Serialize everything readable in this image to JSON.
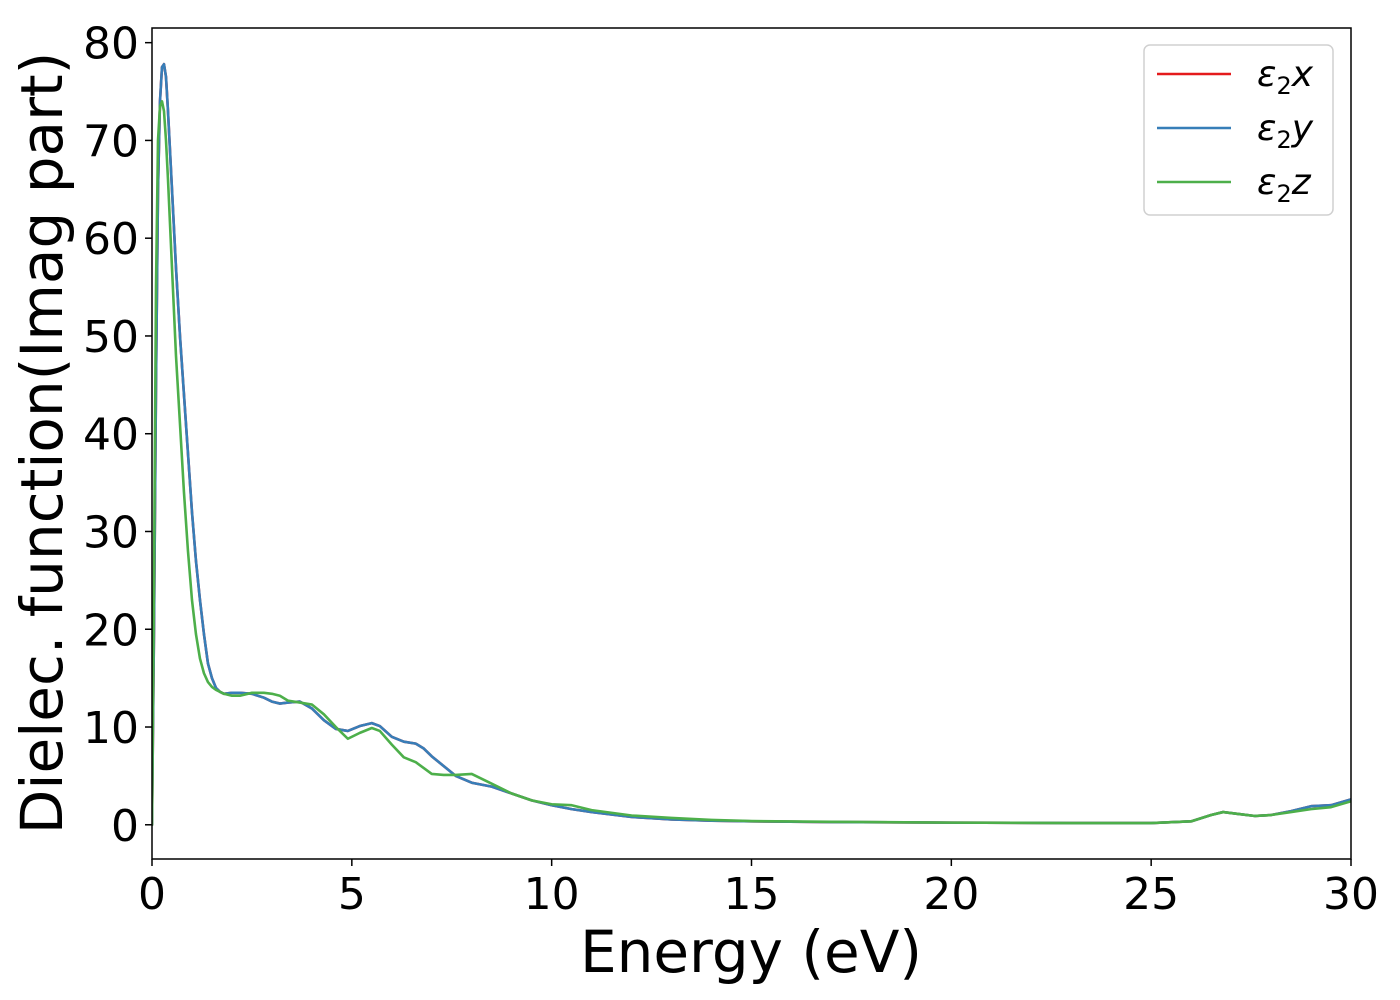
{
  "chart_data": {
    "type": "line",
    "xlabel": "Energy (eV)",
    "ylabel": "Dielec. function(Imag part)",
    "xlim": [
      0,
      30
    ],
    "ylim": [
      -3.5,
      81.5
    ],
    "xticks": [
      0,
      5,
      10,
      15,
      20,
      25,
      30
    ],
    "yticks": [
      0,
      10,
      20,
      30,
      40,
      50,
      60,
      70,
      80
    ],
    "grid": false,
    "legend_position": "top-right",
    "series": [
      {
        "name": "ε₂x",
        "legend": {
          "base": "ε",
          "sub": "2",
          "var": "x"
        },
        "color": "#e41a1c",
        "x": [
          0,
          0.05,
          0.1,
          0.15,
          0.2,
          0.25,
          0.3,
          0.35,
          0.4,
          0.5,
          0.6,
          0.7,
          0.8,
          0.9,
          1.0,
          1.1,
          1.2,
          1.3,
          1.4,
          1.5,
          1.6,
          1.7,
          1.8,
          2.0,
          2.2,
          2.5,
          2.8,
          3.0,
          3.2,
          3.4,
          3.7,
          4.0,
          4.3,
          4.6,
          4.9,
          5.2,
          5.5,
          5.7,
          6.0,
          6.3,
          6.6,
          6.8,
          7.0,
          7.3,
          7.6,
          8.0,
          8.5,
          9.0,
          9.5,
          10.0,
          10.5,
          11.0,
          12.0,
          13.0,
          14.0,
          15.0,
          17.0,
          20.0,
          23.0,
          25.0,
          26.0,
          26.5,
          26.8,
          27.2,
          27.6,
          28.0,
          28.5,
          29.0,
          29.5,
          30.0
        ],
        "values": [
          0,
          20,
          45,
          65,
          74,
          77.5,
          77.8,
          76.5,
          73,
          65,
          57,
          50,
          44,
          38,
          32,
          27,
          23,
          19.5,
          16.5,
          15,
          14,
          13.6,
          13.4,
          13.5,
          13.5,
          13.4,
          13,
          12.6,
          12.4,
          12.5,
          12.6,
          11.9,
          10.7,
          9.8,
          9.6,
          10.1,
          10.4,
          10.1,
          9.0,
          8.5,
          8.3,
          7.8,
          7.0,
          6.0,
          5.0,
          4.3,
          3.9,
          3.2,
          2.5,
          2.0,
          1.6,
          1.3,
          0.8,
          0.55,
          0.42,
          0.35,
          0.28,
          0.22,
          0.18,
          0.18,
          0.35,
          1.0,
          1.3,
          1.1,
          0.9,
          1.0,
          1.4,
          1.9,
          2.0,
          2.6
        ]
      },
      {
        "name": "ε₂y",
        "legend": {
          "base": "ε",
          "sub": "2",
          "var": "y"
        },
        "color": "#377eb8",
        "x": [
          0,
          0.05,
          0.1,
          0.15,
          0.2,
          0.25,
          0.3,
          0.35,
          0.4,
          0.5,
          0.6,
          0.7,
          0.8,
          0.9,
          1.0,
          1.1,
          1.2,
          1.3,
          1.4,
          1.5,
          1.6,
          1.7,
          1.8,
          2.0,
          2.2,
          2.5,
          2.8,
          3.0,
          3.2,
          3.4,
          3.7,
          4.0,
          4.3,
          4.6,
          4.9,
          5.2,
          5.5,
          5.7,
          6.0,
          6.3,
          6.6,
          6.8,
          7.0,
          7.3,
          7.6,
          8.0,
          8.5,
          9.0,
          9.5,
          10.0,
          10.5,
          11.0,
          12.0,
          13.0,
          14.0,
          15.0,
          17.0,
          20.0,
          23.0,
          25.0,
          26.0,
          26.5,
          26.8,
          27.2,
          27.6,
          28.0,
          28.5,
          29.0,
          29.5,
          30.0
        ],
        "values": [
          0,
          20,
          45,
          65,
          74,
          77.5,
          77.8,
          76.5,
          73,
          65,
          57,
          50,
          44,
          38,
          32,
          27,
          23,
          19.5,
          16.5,
          15,
          14,
          13.6,
          13.4,
          13.5,
          13.5,
          13.4,
          13,
          12.6,
          12.4,
          12.5,
          12.6,
          11.9,
          10.7,
          9.8,
          9.6,
          10.1,
          10.4,
          10.1,
          9.0,
          8.5,
          8.3,
          7.8,
          7.0,
          6.0,
          5.0,
          4.3,
          3.9,
          3.2,
          2.5,
          2.0,
          1.6,
          1.3,
          0.8,
          0.55,
          0.42,
          0.35,
          0.28,
          0.22,
          0.18,
          0.18,
          0.35,
          1.0,
          1.3,
          1.1,
          0.9,
          1.0,
          1.4,
          1.9,
          2.0,
          2.6
        ]
      },
      {
        "name": "ε₂z",
        "legend": {
          "base": "ε",
          "sub": "2",
          "var": "z"
        },
        "color": "#4daf4a",
        "x": [
          0,
          0.05,
          0.1,
          0.15,
          0.2,
          0.25,
          0.3,
          0.35,
          0.4,
          0.5,
          0.6,
          0.7,
          0.8,
          0.9,
          1.0,
          1.1,
          1.2,
          1.3,
          1.4,
          1.5,
          1.6,
          1.7,
          1.8,
          2.0,
          2.2,
          2.5,
          2.8,
          3.0,
          3.2,
          3.4,
          3.7,
          4.0,
          4.3,
          4.6,
          4.9,
          5.2,
          5.5,
          5.7,
          6.0,
          6.3,
          6.6,
          6.8,
          7.0,
          7.3,
          7.6,
          8.0,
          8.5,
          9.0,
          9.5,
          10.0,
          10.5,
          11.0,
          12.0,
          13.0,
          14.0,
          15.0,
          17.0,
          20.0,
          23.0,
          25.0,
          26.0,
          26.5,
          26.8,
          27.2,
          27.6,
          28.0,
          28.5,
          29.0,
          29.5,
          30.0
        ],
        "values": [
          0,
          25,
          55,
          70,
          73.5,
          74,
          73,
          70,
          66,
          57,
          48,
          41,
          34,
          28,
          23,
          19.5,
          17,
          15.5,
          14.6,
          14.1,
          13.8,
          13.6,
          13.4,
          13.2,
          13.2,
          13.5,
          13.5,
          13.4,
          13.2,
          12.7,
          12.5,
          12.3,
          11.3,
          10,
          8.8,
          9.4,
          9.9,
          9.6,
          8.2,
          6.9,
          6.4,
          5.8,
          5.2,
          5.1,
          5.1,
          5.2,
          4.2,
          3.2,
          2.5,
          2.1,
          2.0,
          1.5,
          0.95,
          0.7,
          0.5,
          0.38,
          0.3,
          0.22,
          0.18,
          0.18,
          0.35,
          1.0,
          1.3,
          1.1,
          0.9,
          1.0,
          1.3,
          1.6,
          1.8,
          2.4
        ]
      }
    ]
  }
}
